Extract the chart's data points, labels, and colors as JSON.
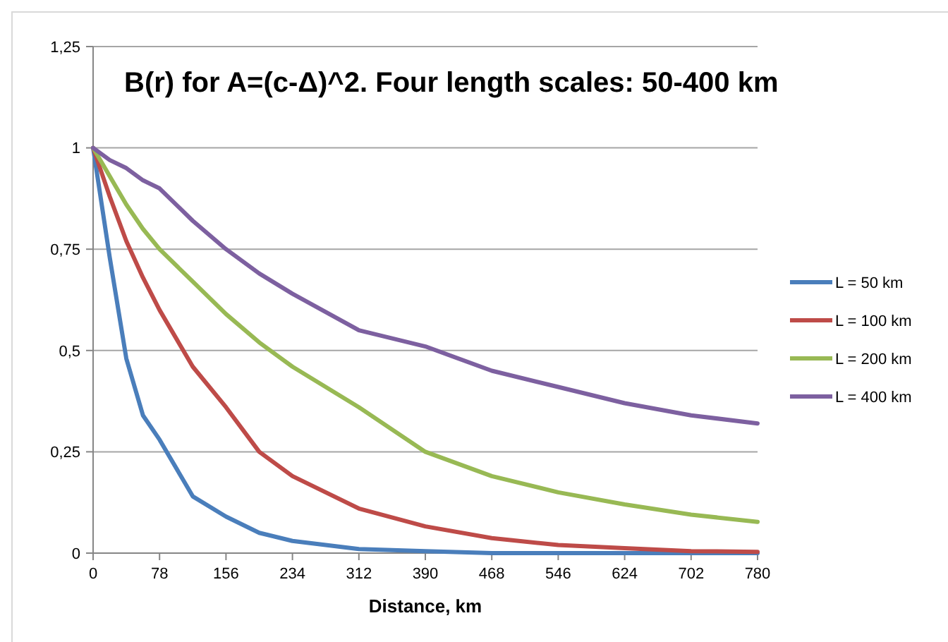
{
  "chart_data": {
    "type": "line",
    "title": "B(r) for A=(c-Δ)^2. Four length scales: 50-400 km",
    "xlabel": "Distance, km",
    "x": [
      0,
      19.5,
      39,
      58.5,
      78,
      117,
      156,
      195,
      234,
      312,
      390,
      468,
      546,
      624,
      702,
      780
    ],
    "series": [
      {
        "name": "L = 50 km",
        "color": "#4a7ebb",
        "values": [
          1,
          0.73,
          0.48,
          0.34,
          0.28,
          0.14,
          0.09,
          0.05,
          0.03,
          0.01,
          0.005,
          0,
          0,
          0,
          0,
          0
        ]
      },
      {
        "name": "L = 100 km",
        "color": "#be4b48",
        "values": [
          1,
          0.88,
          0.77,
          0.68,
          0.6,
          0.46,
          0.36,
          0.25,
          0.19,
          0.11,
          0.066,
          0.037,
          0.02,
          0.012,
          0.005,
          0.003
        ]
      },
      {
        "name": "L = 200 km",
        "color": "#98b954",
        "values": [
          1,
          0.93,
          0.86,
          0.8,
          0.75,
          0.67,
          0.59,
          0.52,
          0.46,
          0.36,
          0.25,
          0.19,
          0.15,
          0.12,
          0.095,
          0.077
        ]
      },
      {
        "name": "L = 400 km",
        "color": "#7d60a0",
        "values": [
          1,
          0.97,
          0.95,
          0.92,
          0.9,
          0.82,
          0.75,
          0.69,
          0.64,
          0.55,
          0.51,
          0.45,
          0.41,
          0.37,
          0.34,
          0.32
        ]
      }
    ],
    "xlim": [
      0,
      780
    ],
    "xticks": [
      0,
      78,
      156,
      234,
      312,
      390,
      468,
      546,
      624,
      702,
      780
    ],
    "ylim": [
      0,
      1.25
    ],
    "yticks": [
      {
        "value": 0,
        "label": "0"
      },
      {
        "value": 0.25,
        "label": "0,25"
      },
      {
        "value": 0.5,
        "label": "0,5"
      },
      {
        "value": 0.75,
        "label": "0,75"
      },
      {
        "value": 1,
        "label": "1"
      },
      {
        "value": 1.25,
        "label": "1,25"
      }
    ],
    "grid": "y",
    "legend": "right",
    "marker": "none",
    "line_style": "solid"
  }
}
